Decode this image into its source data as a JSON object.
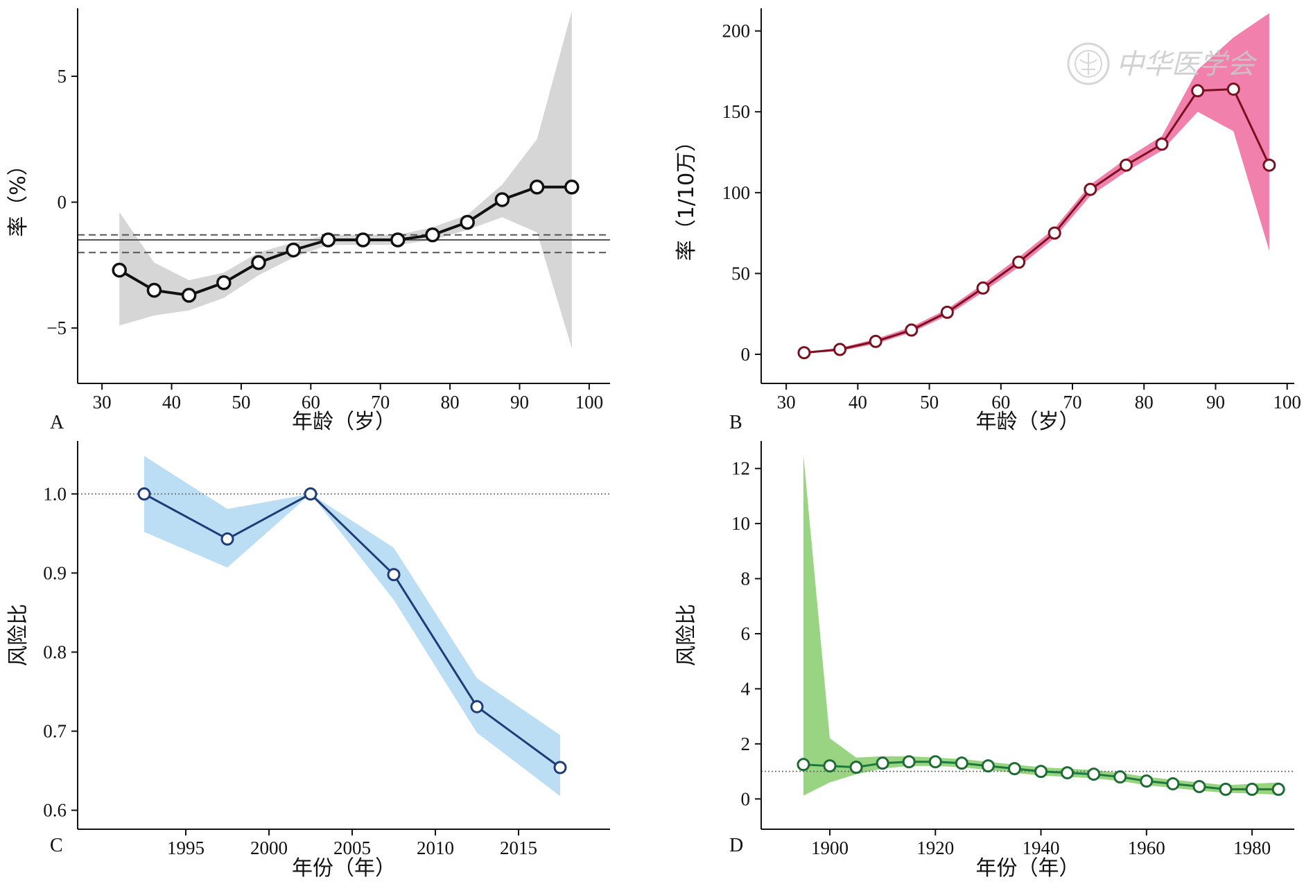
{
  "watermark": {
    "text": "中华医学会"
  },
  "chart_data": [
    {
      "panel": "A",
      "type": "line",
      "xlabel": "年龄（岁）",
      "ylabel": "率（%）",
      "xlim": [
        26.5,
        103
      ],
      "ylim": [
        -7.2,
        7.7
      ],
      "xticks": [
        30,
        40,
        50,
        60,
        70,
        80,
        90,
        100
      ],
      "yticks": [
        -5,
        0,
        5
      ],
      "ytick_labels": [
        "−5",
        "0",
        "5"
      ],
      "colors": {
        "line": "#111111",
        "band": "#d4d4d4",
        "marker_fill": "#ffffff",
        "marker_edge": "#111111",
        "ref": "#555555"
      },
      "series": [
        {
          "x": [
            32.5,
            37.5,
            42.5,
            47.5,
            52.5,
            57.5,
            62.5,
            67.5,
            72.5,
            77.5,
            82.5,
            87.5,
            92.5,
            97.5
          ],
          "y": [
            -2.7,
            -3.5,
            -3.7,
            -3.2,
            -2.4,
            -1.9,
            -1.5,
            -1.5,
            -1.5,
            -1.3,
            -0.8,
            0.1,
            0.6,
            0.6
          ],
          "lower": [
            -4.9,
            -4.5,
            -4.3,
            -3.8,
            -2.9,
            -2.2,
            -1.7,
            -1.7,
            -1.7,
            -1.5,
            -1.1,
            -0.6,
            -1.2,
            -5.8
          ],
          "upper": [
            -0.4,
            -2.4,
            -3.1,
            -2.8,
            -2.0,
            -1.6,
            -1.3,
            -1.3,
            -1.3,
            -1.0,
            -0.5,
            0.7,
            2.5,
            7.6
          ]
        }
      ],
      "ref_lines": [
        {
          "y": -1.5,
          "style": "solid"
        },
        {
          "y": -1.3,
          "style": "dashed"
        },
        {
          "y": -2.0,
          "style": "dashed"
        }
      ]
    },
    {
      "panel": "B",
      "type": "line",
      "xlabel": "年龄（岁）",
      "ylabel": "率（1/10万）",
      "xlim": [
        26.5,
        101
      ],
      "ylim": [
        -18,
        214
      ],
      "xticks": [
        30,
        40,
        50,
        60,
        70,
        80,
        90,
        100
      ],
      "yticks": [
        0,
        50,
        100,
        150,
        200
      ],
      "ytick_labels": [
        "0",
        "50",
        "100",
        "150",
        "200"
      ],
      "colors": {
        "line": "#7a1020",
        "band": "#f07aa8",
        "marker_fill": "#ffffff",
        "marker_edge": "#7a1020"
      },
      "series": [
        {
          "x": [
            32.5,
            37.5,
            42.5,
            47.5,
            52.5,
            57.5,
            62.5,
            67.5,
            72.5,
            77.5,
            82.5,
            87.5,
            92.5,
            97.5
          ],
          "y": [
            1,
            3,
            8,
            15,
            26,
            41,
            57,
            75,
            102,
            117,
            130,
            163,
            164,
            117
          ],
          "lower": [
            0.5,
            2,
            6.5,
            13.5,
            24,
            38.5,
            54,
            72,
            98,
            113,
            126,
            150,
            138,
            64
          ],
          "upper": [
            1.5,
            4,
            9.5,
            17,
            28,
            43.5,
            60,
            78,
            105,
            121,
            135,
            176,
            196,
            211
          ]
        }
      ]
    },
    {
      "panel": "C",
      "type": "line",
      "xlabel": "年份（年）",
      "ylabel": "风险比",
      "xlim": [
        1988.5,
        2020.5
      ],
      "ylim": [
        0.576,
        1.067
      ],
      "xticks": [
        1995,
        2000,
        2005,
        2010,
        2015
      ],
      "yticks": [
        0.6,
        0.7,
        0.8,
        0.9,
        1.0
      ],
      "ytick_labels": [
        "0.6",
        "0.7",
        "0.8",
        "0.9",
        "1.0"
      ],
      "colors": {
        "line": "#1f3c78",
        "band": "#b7dcf3",
        "marker_fill": "#ffffff",
        "marker_edge": "#1f3c78",
        "ref": "#666666"
      },
      "series": [
        {
          "x": [
            1992.5,
            1997.5,
            2002.5,
            2007.5,
            2012.5,
            2017.5
          ],
          "y": [
            1.0,
            0.943,
            1.0,
            0.898,
            0.731,
            0.654
          ],
          "lower": [
            0.952,
            0.907,
            1.0,
            0.866,
            0.698,
            0.618
          ],
          "upper": [
            1.048,
            0.981,
            1.0,
            0.932,
            0.767,
            0.695
          ]
        }
      ],
      "ref_lines": [
        {
          "y": 1.0,
          "style": "dotted"
        }
      ]
    },
    {
      "panel": "D",
      "type": "line",
      "xlabel": "年份（年）",
      "ylabel": "风险比",
      "xlim": [
        1887,
        1988
      ],
      "ylim": [
        -1.1,
        13.0
      ],
      "xticks": [
        1900,
        1920,
        1940,
        1960,
        1980
      ],
      "yticks": [
        0,
        2,
        4,
        6,
        8,
        10,
        12
      ],
      "ytick_labels": [
        "0",
        "2",
        "4",
        "6",
        "8",
        "10",
        "12"
      ],
      "colors": {
        "line": "#1e7a3c",
        "band": "#92d27a",
        "marker_fill": "#ffffff",
        "marker_edge": "#1e6b34",
        "ref": "#666666"
      },
      "series": [
        {
          "x": [
            1895,
            1900,
            1905,
            1910,
            1915,
            1920,
            1925,
            1930,
            1935,
            1940,
            1945,
            1950,
            1955,
            1960,
            1965,
            1970,
            1975,
            1980,
            1985
          ],
          "y": [
            1.25,
            1.2,
            1.15,
            1.3,
            1.35,
            1.35,
            1.3,
            1.2,
            1.1,
            1.0,
            0.95,
            0.9,
            0.8,
            0.65,
            0.55,
            0.45,
            0.35,
            0.35,
            0.35
          ],
          "lower": [
            0.12,
            0.6,
            0.9,
            1.1,
            1.2,
            1.2,
            1.15,
            1.05,
            0.95,
            0.85,
            0.8,
            0.75,
            0.65,
            0.5,
            0.4,
            0.3,
            0.22,
            0.2,
            0.15
          ],
          "upper": [
            12.5,
            2.2,
            1.5,
            1.55,
            1.55,
            1.5,
            1.45,
            1.35,
            1.25,
            1.15,
            1.1,
            1.05,
            0.95,
            0.8,
            0.7,
            0.6,
            0.5,
            0.55,
            0.6
          ]
        }
      ],
      "ref_lines": [
        {
          "y": 1.0,
          "style": "dotted"
        }
      ]
    }
  ]
}
